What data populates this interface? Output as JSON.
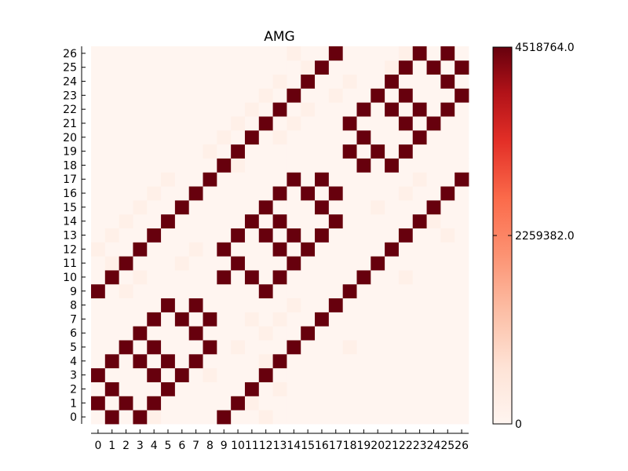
{
  "chart_data": {
    "type": "heatmap",
    "title": "AMG",
    "xlabel": "",
    "ylabel": "",
    "x_ticks": [
      "0",
      "1",
      "2",
      "3",
      "4",
      "5",
      "6",
      "7",
      "8",
      "9",
      "10",
      "11",
      "12",
      "13",
      "14",
      "15",
      "16",
      "17",
      "18",
      "19",
      "20",
      "21",
      "22",
      "23",
      "24",
      "25",
      "26"
    ],
    "y_ticks": [
      "0",
      "1",
      "2",
      "3",
      "4",
      "5",
      "6",
      "7",
      "8",
      "9",
      "10",
      "11",
      "12",
      "13",
      "14",
      "15",
      "16",
      "17",
      "18",
      "19",
      "20",
      "21",
      "22",
      "23",
      "24",
      "25",
      "26"
    ],
    "colormap": "Reds",
    "colors": {
      "low": "#fff5f0",
      "mid": "#fb7050",
      "high": "#67000d"
    },
    "colorbar": {
      "min": 0,
      "max": 4518764.0,
      "tick_labels": [
        "0",
        "2259382.0",
        "4518764.0"
      ]
    },
    "high_value": 4518764.0,
    "high_cells": [
      [
        0,
        1
      ],
      [
        0,
        3
      ],
      [
        0,
        9
      ],
      [
        1,
        0
      ],
      [
        1,
        2
      ],
      [
        1,
        4
      ],
      [
        1,
        10
      ],
      [
        2,
        1
      ],
      [
        2,
        5
      ],
      [
        2,
        11
      ],
      [
        3,
        0
      ],
      [
        3,
        4
      ],
      [
        3,
        6
      ],
      [
        3,
        12
      ],
      [
        4,
        1
      ],
      [
        4,
        3
      ],
      [
        4,
        5
      ],
      [
        4,
        7
      ],
      [
        4,
        13
      ],
      [
        5,
        2
      ],
      [
        5,
        4
      ],
      [
        5,
        8
      ],
      [
        5,
        14
      ],
      [
        6,
        3
      ],
      [
        6,
        7
      ],
      [
        6,
        15
      ],
      [
        7,
        4
      ],
      [
        7,
        6
      ],
      [
        7,
        8
      ],
      [
        7,
        16
      ],
      [
        8,
        5
      ],
      [
        8,
        7
      ],
      [
        8,
        17
      ],
      [
        9,
        0
      ],
      [
        9,
        12
      ],
      [
        9,
        18
      ],
      [
        10,
        1
      ],
      [
        10,
        9
      ],
      [
        10,
        11
      ],
      [
        10,
        13
      ],
      [
        10,
        19
      ],
      [
        11,
        2
      ],
      [
        11,
        10
      ],
      [
        11,
        14
      ],
      [
        11,
        20
      ],
      [
        12,
        3
      ],
      [
        12,
        9
      ],
      [
        12,
        13
      ],
      [
        12,
        15
      ],
      [
        12,
        21
      ],
      [
        13,
        4
      ],
      [
        13,
        10
      ],
      [
        13,
        12
      ],
      [
        13,
        14
      ],
      [
        13,
        16
      ],
      [
        13,
        22
      ],
      [
        14,
        5
      ],
      [
        14,
        11
      ],
      [
        14,
        13
      ],
      [
        14,
        17
      ],
      [
        14,
        23
      ],
      [
        15,
        6
      ],
      [
        15,
        12
      ],
      [
        15,
        16
      ],
      [
        15,
        24
      ],
      [
        16,
        7
      ],
      [
        16,
        13
      ],
      [
        16,
        15
      ],
      [
        16,
        17
      ],
      [
        16,
        25
      ],
      [
        17,
        8
      ],
      [
        17,
        14
      ],
      [
        17,
        16
      ],
      [
        17,
        26
      ],
      [
        18,
        9
      ],
      [
        18,
        19
      ],
      [
        18,
        21
      ],
      [
        19,
        10
      ],
      [
        19,
        18
      ],
      [
        19,
        20
      ],
      [
        19,
        22
      ],
      [
        20,
        11
      ],
      [
        20,
        19
      ],
      [
        20,
        23
      ],
      [
        21,
        12
      ],
      [
        21,
        18
      ],
      [
        21,
        22
      ],
      [
        21,
        24
      ],
      [
        22,
        13
      ],
      [
        22,
        19
      ],
      [
        22,
        21
      ],
      [
        22,
        23
      ],
      [
        22,
        25
      ],
      [
        23,
        14
      ],
      [
        23,
        20
      ],
      [
        23,
        22
      ],
      [
        23,
        26
      ],
      [
        24,
        15
      ],
      [
        24,
        21
      ],
      [
        24,
        25
      ],
      [
        25,
        16
      ],
      [
        25,
        22
      ],
      [
        25,
        24
      ],
      [
        25,
        26
      ],
      [
        26,
        17
      ],
      [
        26,
        23
      ],
      [
        26,
        25
      ]
    ],
    "faint_cells": [
      [
        26,
        14
      ],
      [
        26,
        22
      ],
      [
        25,
        15
      ],
      [
        25,
        21
      ],
      [
        24,
        13
      ],
      [
        24,
        18
      ],
      [
        23,
        12
      ],
      [
        23,
        17
      ],
      [
        22,
        11
      ],
      [
        22,
        15
      ],
      [
        21,
        10
      ],
      [
        21,
        14
      ],
      [
        20,
        9
      ],
      [
        20,
        13
      ],
      [
        19,
        8
      ],
      [
        18,
        10
      ],
      [
        17,
        5
      ],
      [
        17,
        23
      ],
      [
        16,
        4
      ],
      [
        16,
        22
      ],
      [
        15,
        3
      ],
      [
        15,
        20
      ],
      [
        14,
        2
      ],
      [
        14,
        24
      ],
      [
        13,
        1
      ],
      [
        13,
        25
      ],
      [
        12,
        0
      ],
      [
        12,
        7
      ],
      [
        11,
        1
      ],
      [
        11,
        6
      ],
      [
        10,
        3
      ],
      [
        10,
        22
      ],
      [
        9,
        2
      ],
      [
        8,
        14
      ],
      [
        7,
        11
      ],
      [
        7,
        13
      ],
      [
        6,
        12
      ],
      [
        5,
        10
      ],
      [
        5,
        18
      ],
      [
        4,
        12
      ],
      [
        3,
        8
      ],
      [
        2,
        13
      ],
      [
        1,
        11
      ],
      [
        0,
        4
      ],
      [
        0,
        12
      ]
    ],
    "faint_value": 200000
  }
}
